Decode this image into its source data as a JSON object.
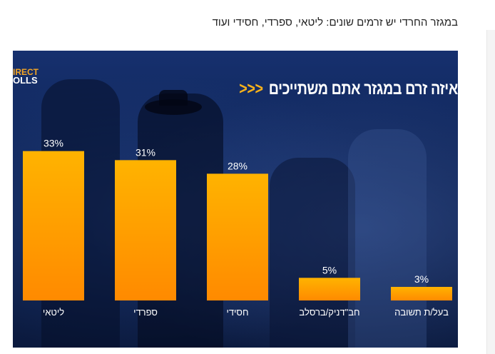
{
  "page": {
    "caption": "במגזר החרדי יש זרמים שונים: ליטאי, ספרדי, חסידי ועוד"
  },
  "chart": {
    "logo_line1": "IRECT",
    "logo_line2": "OLLS",
    "title": "איזה זרם במגזר אתם משתייכים",
    "title_arrows": "<<<"
  },
  "colors": {
    "bar_top": "#ffb300",
    "bar_bottom": "#ff8a00",
    "accent": "#f7b21b",
    "background": "#12295f"
  },
  "chart_data": {
    "type": "bar",
    "title": "איזה זרם במגזר אתם משתייכים",
    "categories": [
      "ליטאי",
      "ספרדי",
      "חסידי",
      "חב\"דניק/ברסלב",
      "בעל/ת תשובה"
    ],
    "values": [
      33,
      31,
      28,
      5,
      3
    ],
    "data_labels": [
      "33%",
      "31%",
      "28%",
      "5%",
      "3%"
    ],
    "xlabel": "",
    "ylabel": "",
    "ylim": [
      0,
      35
    ],
    "grid": false,
    "legend": "none"
  }
}
